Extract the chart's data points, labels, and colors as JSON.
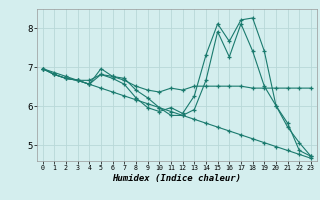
{
  "xlabel": "Humidex (Indice chaleur)",
  "background_color": "#d4eeee",
  "grid_color": "#b8d8d8",
  "line_color": "#1a7a6e",
  "xlim": [
    -0.5,
    23.5
  ],
  "ylim": [
    4.6,
    8.5
  ],
  "yticks": [
    5,
    6,
    7,
    8
  ],
  "xticks": [
    0,
    1,
    2,
    3,
    4,
    5,
    6,
    7,
    8,
    9,
    10,
    11,
    12,
    13,
    14,
    15,
    16,
    17,
    18,
    19,
    20,
    21,
    22,
    23
  ],
  "series": [
    {
      "x": [
        0,
        1,
        2,
        3,
        4,
        5,
        6,
        7,
        8,
        9,
        10,
        11,
        12,
        13,
        14,
        15,
        16,
        17,
        18,
        19,
        20,
        21,
        22,
        23
      ],
      "y": [
        6.97,
        6.87,
        6.77,
        6.67,
        6.57,
        6.47,
        6.37,
        6.27,
        6.17,
        6.07,
        5.97,
        5.87,
        5.77,
        5.67,
        5.57,
        5.47,
        5.37,
        5.27,
        5.17,
        5.07,
        4.97,
        4.87,
        4.77,
        4.67
      ]
    },
    {
      "x": [
        0,
        1,
        2,
        3,
        4,
        5,
        6,
        7,
        8,
        9,
        10,
        11,
        12,
        13,
        14,
        15,
        16,
        17,
        18,
        19,
        20,
        21,
        22,
        23
      ],
      "y": [
        6.97,
        6.82,
        6.72,
        6.67,
        6.67,
        6.82,
        6.77,
        6.67,
        6.52,
        6.42,
        6.37,
        6.47,
        6.42,
        6.52,
        6.52,
        6.52,
        6.52,
        6.52,
        6.47,
        6.47,
        6.47,
        6.47,
        6.47,
        6.47
      ]
    },
    {
      "x": [
        0,
        1,
        2,
        3,
        4,
        5,
        6,
        7,
        8,
        9,
        10,
        11,
        12,
        13,
        14,
        15,
        16,
        17,
        18,
        19,
        20,
        21,
        22,
        23
      ],
      "y": [
        6.97,
        6.82,
        6.72,
        6.67,
        6.57,
        6.82,
        6.72,
        6.57,
        6.22,
        5.97,
        5.87,
        5.97,
        5.82,
        6.27,
        7.32,
        8.12,
        7.67,
        8.22,
        8.27,
        7.42,
        6.02,
        5.47,
        5.07,
        4.72
      ]
    },
    {
      "x": [
        0,
        1,
        2,
        3,
        4,
        5,
        6,
        7,
        8,
        9,
        10,
        11,
        12,
        13,
        14,
        15,
        16,
        17,
        18,
        19,
        20,
        21,
        22,
        23
      ],
      "y": [
        6.97,
        6.82,
        6.72,
        6.67,
        6.57,
        6.97,
        6.77,
        6.72,
        6.42,
        6.22,
        5.97,
        5.77,
        5.77,
        5.92,
        6.67,
        7.92,
        7.27,
        8.12,
        7.42,
        6.52,
        6.02,
        5.57,
        4.87,
        4.72
      ]
    }
  ]
}
